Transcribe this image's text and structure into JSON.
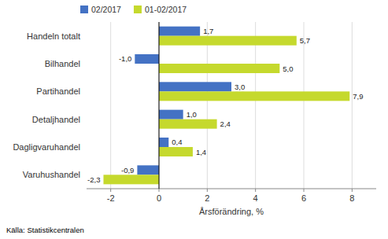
{
  "chart_data": {
    "type": "bar",
    "orientation": "horizontal",
    "categories": [
      "Varuhushandel",
      "Dagligvaruhandel",
      "Detaljhandel",
      "Partihandel",
      "Bilhandel",
      "Handeln totalt"
    ],
    "series": [
      {
        "name": "02/2017",
        "color": "#4472C4",
        "values": [
          -0.9,
          0.4,
          1.0,
          3.0,
          -1.0,
          1.7
        ],
        "value_labels": [
          "-0,9",
          "0,4",
          "1,0",
          "3,0",
          "-1,0",
          "1,7"
        ]
      },
      {
        "name": "01-02/2017",
        "color": "#C5D92D",
        "values": [
          -2.3,
          1.4,
          2.4,
          7.9,
          5.0,
          5.7
        ],
        "value_labels": [
          "-2,3",
          "1,4",
          "2,4",
          "7,9",
          "5,0",
          "5,7"
        ]
      }
    ],
    "x_label": "Årsförändring, %",
    "annotations": [
      "Källa: Statistikcentralen"
    ],
    "xlim": [
      -3,
      9
    ],
    "xticks": [
      -2,
      0,
      2,
      4,
      6,
      8
    ],
    "grid": true,
    "legend": "upper left",
    "data_labels": true
  }
}
